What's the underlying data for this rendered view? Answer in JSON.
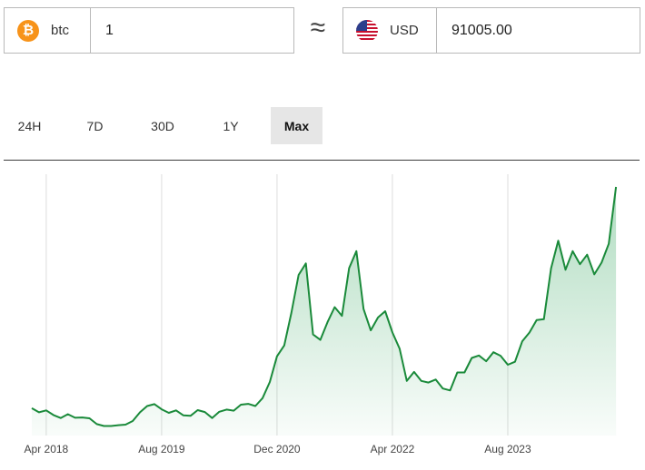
{
  "converter": {
    "from": {
      "code": "btc",
      "icon": "bitcoin-icon",
      "icon_glyph": "₿",
      "amount": "1"
    },
    "approx_symbol": "≈",
    "to": {
      "code": "USD",
      "icon": "us-flag-icon",
      "amount": "91005.00"
    }
  },
  "range_tabs": [
    {
      "label": "24H",
      "active": false
    },
    {
      "label": "7D",
      "active": false
    },
    {
      "label": "30D",
      "active": false
    },
    {
      "label": "1Y",
      "active": false
    },
    {
      "label": "Max",
      "active": true
    }
  ],
  "colors": {
    "line": "#1a8a3a",
    "fill": "#2fa35a",
    "active_tab": "#e6e6e6",
    "grid": "#dddddd"
  },
  "chart_data": {
    "type": "area",
    "title": "",
    "xlabel": "",
    "ylabel": "",
    "x_tick_labels": [
      "Apr 2018",
      "Aug 2019",
      "Dec 2020",
      "Apr 2022",
      "Aug 2023"
    ],
    "grid": {
      "vertical": true,
      "horizontal": false
    },
    "x_range": [
      "2018-02",
      "2024-12"
    ],
    "series": [
      {
        "points": [
          [
            "2018-02",
            10000
          ],
          [
            "2018-03",
            8500
          ],
          [
            "2018-04",
            9200
          ],
          [
            "2018-05",
            7500
          ],
          [
            "2018-06",
            6400
          ],
          [
            "2018-07",
            7800
          ],
          [
            "2018-08",
            6500
          ],
          [
            "2018-09",
            6600
          ],
          [
            "2018-10",
            6300
          ],
          [
            "2018-11",
            4200
          ],
          [
            "2018-12",
            3500
          ],
          [
            "2019-01",
            3500
          ],
          [
            "2019-02",
            3800
          ],
          [
            "2019-03",
            4000
          ],
          [
            "2019-04",
            5300
          ],
          [
            "2019-05",
            8500
          ],
          [
            "2019-06",
            10800
          ],
          [
            "2019-07",
            11500
          ],
          [
            "2019-08",
            9600
          ],
          [
            "2019-09",
            8300
          ],
          [
            "2019-10",
            9200
          ],
          [
            "2019-11",
            7400
          ],
          [
            "2019-12",
            7200
          ],
          [
            "2020-01",
            9300
          ],
          [
            "2020-02",
            8600
          ],
          [
            "2020-03",
            6400
          ],
          [
            "2020-04",
            8700
          ],
          [
            "2020-05",
            9500
          ],
          [
            "2020-06",
            9100
          ],
          [
            "2020-07",
            11300
          ],
          [
            "2020-08",
            11600
          ],
          [
            "2020-09",
            10800
          ],
          [
            "2020-10",
            13700
          ],
          [
            "2020-11",
            19600
          ],
          [
            "2020-12",
            29000
          ],
          [
            "2021-01",
            33000
          ],
          [
            "2021-02",
            45000
          ],
          [
            "2021-03",
            58800
          ],
          [
            "2021-04",
            63000
          ],
          [
            "2021-05",
            37000
          ],
          [
            "2021-06",
            35000
          ],
          [
            "2021-07",
            41500
          ],
          [
            "2021-08",
            47000
          ],
          [
            "2021-09",
            43800
          ],
          [
            "2021-10",
            61300
          ],
          [
            "2021-11",
            67500
          ],
          [
            "2021-12",
            46300
          ],
          [
            "2022-01",
            38500
          ],
          [
            "2022-02",
            43200
          ],
          [
            "2022-03",
            45500
          ],
          [
            "2022-04",
            37700
          ],
          [
            "2022-05",
            31800
          ],
          [
            "2022-06",
            20000
          ],
          [
            "2022-07",
            23300
          ],
          [
            "2022-08",
            20000
          ],
          [
            "2022-09",
            19400
          ],
          [
            "2022-10",
            20500
          ],
          [
            "2022-11",
            17200
          ],
          [
            "2022-12",
            16500
          ],
          [
            "2023-01",
            23100
          ],
          [
            "2023-02",
            23100
          ],
          [
            "2023-03",
            28400
          ],
          [
            "2023-04",
            29300
          ],
          [
            "2023-05",
            27200
          ],
          [
            "2023-06",
            30500
          ],
          [
            "2023-07",
            29200
          ],
          [
            "2023-08",
            25900
          ],
          [
            "2023-09",
            27000
          ],
          [
            "2023-10",
            34500
          ],
          [
            "2023-11",
            37700
          ],
          [
            "2023-12",
            42300
          ],
          [
            "2024-01",
            42600
          ],
          [
            "2024-02",
            61200
          ],
          [
            "2024-03",
            71300
          ],
          [
            "2024-04",
            60700
          ],
          [
            "2024-05",
            67500
          ],
          [
            "2024-06",
            62700
          ],
          [
            "2024-07",
            66200
          ],
          [
            "2024-08",
            59000
          ],
          [
            "2024-09",
            63300
          ],
          [
            "2024-10",
            70200
          ],
          [
            "2024-11",
            91000
          ]
        ]
      }
    ]
  }
}
